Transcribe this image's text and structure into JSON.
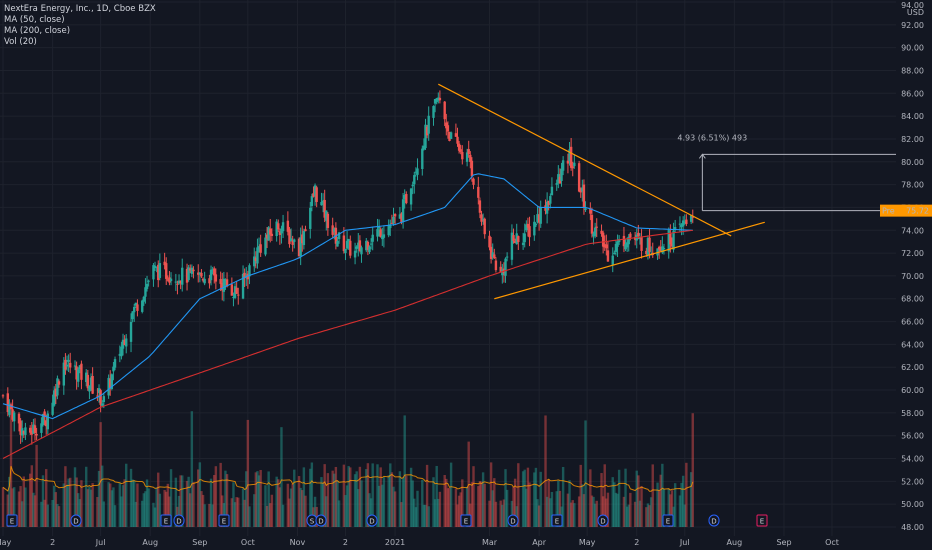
{
  "header": {
    "title": "NextEra Energy, Inc., 1D, Cboe BZX",
    "indicators": [
      "MA (50, close)",
      "MA (200, close)",
      "Vol (20)"
    ]
  },
  "price_axis": {
    "currency": "USD",
    "top_label": "94.00",
    "labels": [
      "92.00",
      "90.00",
      "88.00",
      "86.00",
      "84.00",
      "82.00",
      "80.00",
      "78.00",
      "76.00",
      "74.00",
      "72.00",
      "70.00",
      "68.00",
      "66.00",
      "64.00",
      "62.00",
      "60.00",
      "58.00",
      "56.00",
      "54.00",
      "52.00",
      "50.00",
      "48.00"
    ],
    "current_tag_prefix": "Pre",
    "current_price": "75.72"
  },
  "time_axis": [
    "May",
    "2",
    "Jul",
    "Aug",
    "Sep",
    "Oct",
    "Nov",
    "2",
    "2021",
    "Mar",
    "Apr",
    "May",
    "2",
    "Jul",
    "Aug",
    "Sep",
    "Oct"
  ],
  "measure_label": "4.93 (6.51%) 493",
  "colors": {
    "background": "#131722",
    "up": "#26a69a",
    "down": "#ef5350",
    "ma50": "#2196f3",
    "ma200": "#d32f2f",
    "trendline": "#ff9800",
    "vol_ma": "#ff9800",
    "grid": "#1e222d"
  },
  "event_badges": [
    "E",
    "D",
    "E",
    "D",
    "E",
    "S",
    "D",
    "D",
    "E",
    "D",
    "E",
    "D",
    "E",
    "D",
    "E"
  ],
  "chart_data": {
    "type": "candlestick",
    "title": "NextEra Energy, Inc., 1D, Cboe BZX",
    "ylim": [
      48,
      94
    ],
    "x_range": [
      "2020-05-01",
      "2021-10-31"
    ],
    "ohlc_anchors": [
      {
        "date": "2020-05-01",
        "close": 59.5
      },
      {
        "date": "2020-05-15",
        "close": 56.0
      },
      {
        "date": "2020-05-28",
        "close": 57.5
      },
      {
        "date": "2020-06-08",
        "close": 62.5
      },
      {
        "date": "2020-06-22",
        "close": 61.0
      },
      {
        "date": "2020-07-03",
        "close": 59.0
      },
      {
        "date": "2020-07-20",
        "close": 66.5
      },
      {
        "date": "2020-08-03",
        "close": 70.5
      },
      {
        "date": "2020-08-20",
        "close": 70.0
      },
      {
        "date": "2020-09-08",
        "close": 70.0
      },
      {
        "date": "2020-09-25",
        "close": 68.5
      },
      {
        "date": "2020-10-08",
        "close": 72.5
      },
      {
        "date": "2020-10-20",
        "close": 74.5
      },
      {
        "date": "2020-11-02",
        "close": 72.5
      },
      {
        "date": "2020-11-12",
        "close": 77.5
      },
      {
        "date": "2020-11-24",
        "close": 73.5
      },
      {
        "date": "2020-12-07",
        "close": 72.0
      },
      {
        "date": "2020-12-22",
        "close": 74.0
      },
      {
        "date": "2021-01-04",
        "close": 75.0
      },
      {
        "date": "2021-01-20",
        "close": 82.5
      },
      {
        "date": "2021-01-28",
        "close": 85.5
      },
      {
        "date": "2021-02-05",
        "close": 82.0
      },
      {
        "date": "2021-02-17",
        "close": 80.0
      },
      {
        "date": "2021-02-26",
        "close": 73.5
      },
      {
        "date": "2021-03-08",
        "close": 70.0
      },
      {
        "date": "2021-03-15",
        "close": 73.0
      },
      {
        "date": "2021-03-26",
        "close": 74.0
      },
      {
        "date": "2021-04-08",
        "close": 77.0
      },
      {
        "date": "2021-04-20",
        "close": 80.5
      },
      {
        "date": "2021-05-04",
        "close": 74.5
      },
      {
        "date": "2021-05-14",
        "close": 72.0
      },
      {
        "date": "2021-05-26",
        "close": 73.5
      },
      {
        "date": "2021-06-10",
        "close": 72.5
      },
      {
        "date": "2021-06-25",
        "close": 73.5
      },
      {
        "date": "2021-07-06",
        "close": 75.7
      }
    ],
    "ma50_anchors": [
      {
        "date": "2020-05-01",
        "value": 58.8
      },
      {
        "date": "2020-06-01",
        "value": 57.5
      },
      {
        "date": "2020-07-01",
        "value": 59.5
      },
      {
        "date": "2020-08-01",
        "value": 63.0
      },
      {
        "date": "2020-09-01",
        "value": 68.0
      },
      {
        "date": "2020-10-01",
        "value": 70.0
      },
      {
        "date": "2020-11-01",
        "value": 71.5
      },
      {
        "date": "2020-12-01",
        "value": 74.0
      },
      {
        "date": "2021-01-01",
        "value": 74.5
      },
      {
        "date": "2021-02-01",
        "value": 76.0
      },
      {
        "date": "2021-02-20",
        "value": 79.0
      },
      {
        "date": "2021-03-10",
        "value": 78.5
      },
      {
        "date": "2021-04-01",
        "value": 76.0
      },
      {
        "date": "2021-05-01",
        "value": 76.0
      },
      {
        "date": "2021-06-01",
        "value": 74.2
      },
      {
        "date": "2021-07-06",
        "value": 74.0
      }
    ],
    "ma200_anchors": [
      {
        "date": "2020-05-01",
        "value": 54.0
      },
      {
        "date": "2020-07-01",
        "value": 58.5
      },
      {
        "date": "2020-09-01",
        "value": 61.5
      },
      {
        "date": "2020-11-01",
        "value": 64.5
      },
      {
        "date": "2021-01-01",
        "value": 67.0
      },
      {
        "date": "2021-03-01",
        "value": 70.0
      },
      {
        "date": "2021-05-01",
        "value": 72.8
      },
      {
        "date": "2021-07-06",
        "value": 74.0
      }
    ],
    "trendlines": [
      {
        "name": "upper",
        "from": {
          "date": "2021-01-28",
          "value": 86.8
        },
        "to": {
          "date": "2021-07-30",
          "value": 73.5
        }
      },
      {
        "name": "lower",
        "from": {
          "date": "2021-03-04",
          "value": 68.0
        },
        "to": {
          "date": "2021-08-20",
          "value": 74.7
        }
      }
    ],
    "price_range_measure": {
      "from": {
        "date": "2021-07-12",
        "value": 75.72
      },
      "to": {
        "date": "2021-07-12",
        "value": 80.65
      },
      "change": 4.93,
      "percent": 6.51,
      "bars": 493
    },
    "volume": {
      "unit": "relative",
      "ma_period": 20
    }
  }
}
